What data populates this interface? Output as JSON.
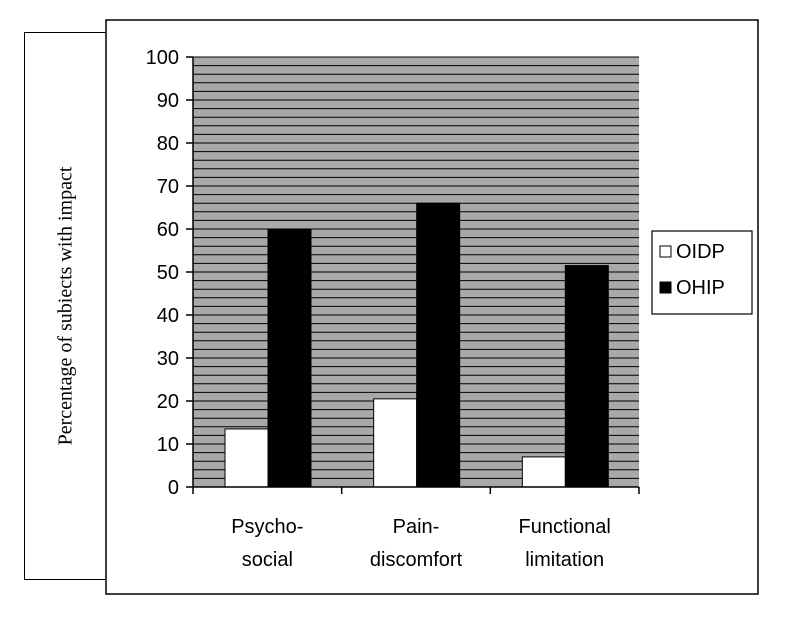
{
  "chart_data": {
    "type": "bar",
    "ylabel": "Percentage of subiects with impact",
    "xlabel": "",
    "categories": [
      [
        "Psycho-",
        "social"
      ],
      [
        "Pain-",
        "discomfort"
      ],
      [
        "Functional",
        "limitation"
      ]
    ],
    "series": [
      {
        "name": "OIDP",
        "values": [
          13.5,
          20.5,
          7
        ],
        "color": "#ffffff"
      },
      {
        "name": "OHIP",
        "values": [
          60,
          66,
          51.5
        ],
        "color": "#000000"
      }
    ],
    "ylim": [
      0,
      100
    ],
    "yticks": [
      0,
      10,
      20,
      30,
      40,
      50,
      60,
      70,
      80,
      90,
      100
    ],
    "plot_background": "#a9a9a9",
    "grid": "horizontal lines every 2 units",
    "legend": "right"
  }
}
